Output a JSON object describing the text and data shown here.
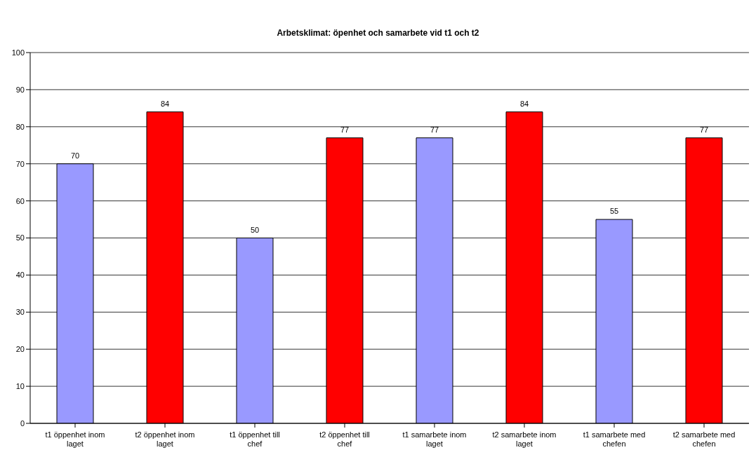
{
  "chart_data": {
    "type": "bar",
    "title": "Arbetsklimat: öpenhet och samarbete vid t1 och t2",
    "categories": [
      "t1 öppenhet inom laget",
      "t2 öppenhet inom laget",
      "t1 öppenhet till chef",
      "t2 öppenhet till chef",
      "t1 samarbete inom laget",
      "t2 samarbete inom laget",
      "t1 samarbete med chefen",
      "t2 samarbete med chefen"
    ],
    "values": [
      70,
      84,
      50,
      77,
      77,
      84,
      55,
      77
    ],
    "colors": [
      "#9999ff",
      "#ff0000",
      "#9999ff",
      "#ff0000",
      "#9999ff",
      "#ff0000",
      "#9999ff",
      "#ff0000"
    ],
    "ylim": [
      0,
      100
    ],
    "yticks": [
      0,
      10,
      20,
      30,
      40,
      50,
      60,
      70,
      80,
      90,
      100
    ],
    "grid": "y",
    "data_labels": true
  }
}
